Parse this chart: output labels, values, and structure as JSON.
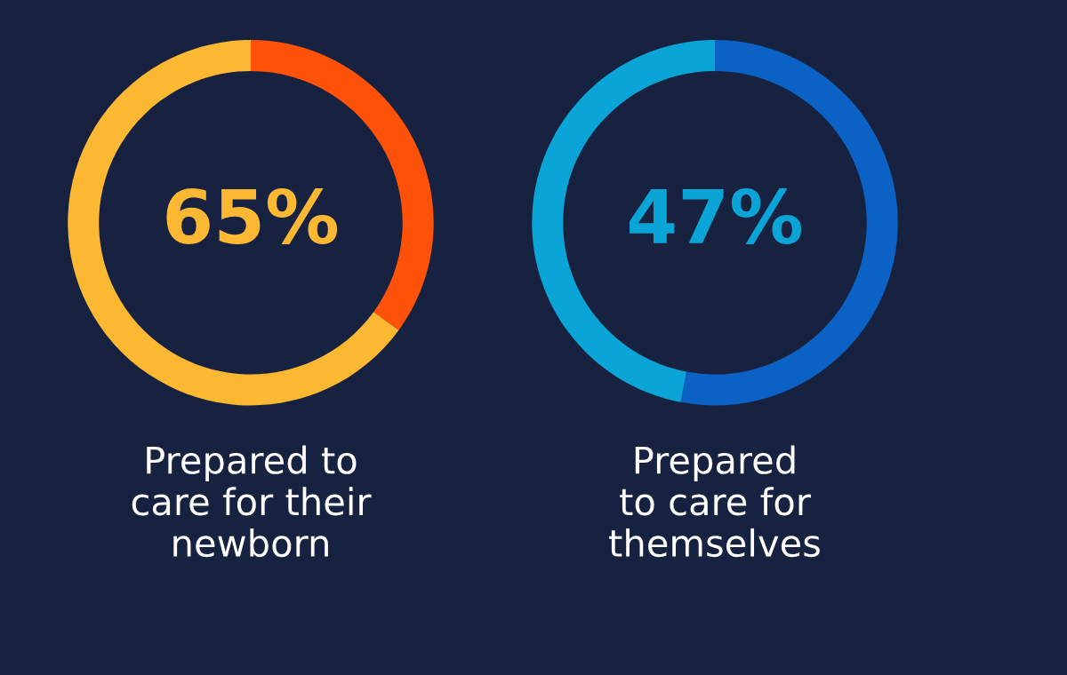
{
  "chart_data": [
    {
      "type": "donut",
      "categories": [
        null,
        null
      ],
      "values": [
        35,
        65
      ],
      "colors": [
        "#ff5208",
        "#fdb833"
      ],
      "value_labels": [
        null,
        "65%"
      ],
      "xlabel": "Prepared to\ncare for their\nnewborn"
    },
    {
      "type": "donut",
      "categories": [
        null,
        null
      ],
      "values": [
        53,
        47
      ],
      "colors": [
        "#0b62c4",
        "#0aa5d6"
      ],
      "value_labels": [
        null,
        "47%"
      ],
      "xlabel": "Prepared\nto care for\nthemselves"
    }
  ]
}
